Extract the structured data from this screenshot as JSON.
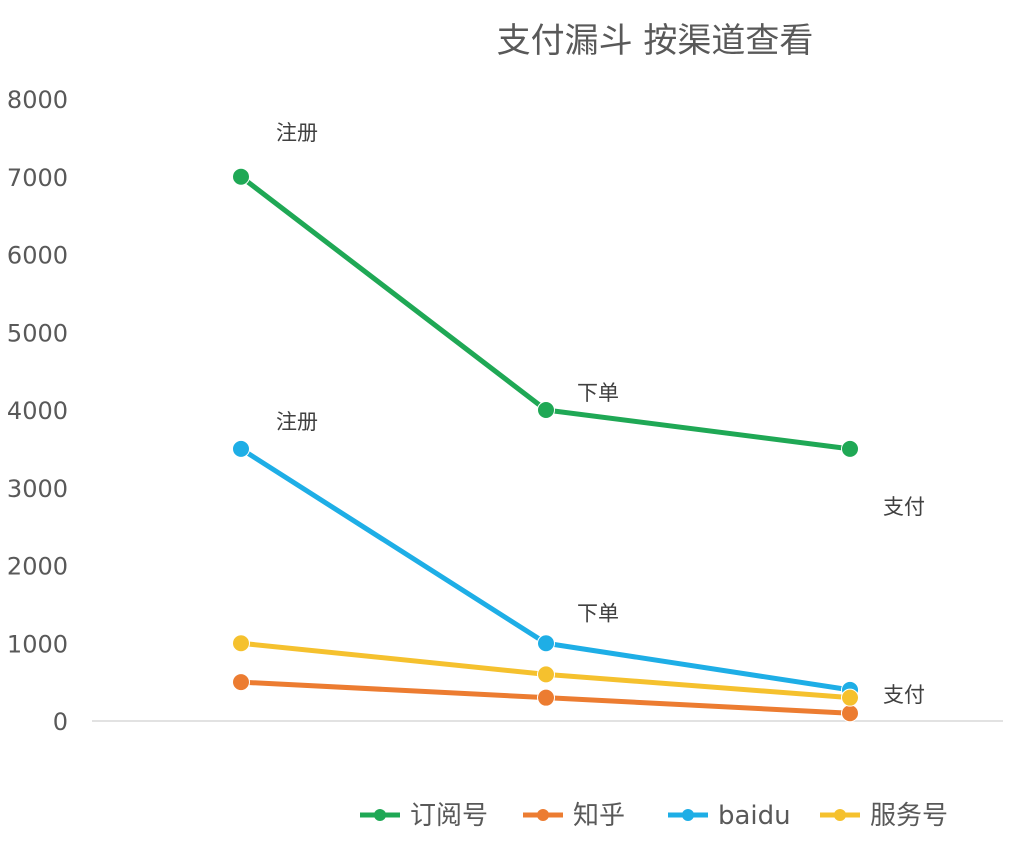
{
  "chart_data": {
    "type": "line",
    "title": "支付漏斗 按渠道查看",
    "xlabel": "",
    "ylabel": "",
    "categories": [
      "注册",
      "下单",
      "支付"
    ],
    "ylim": [
      0,
      8000
    ],
    "yticks": [
      0,
      1000,
      2000,
      3000,
      4000,
      5000,
      6000,
      7000,
      8000
    ],
    "grid": false,
    "legend_position": "bottom",
    "series": [
      {
        "name": "订阅号",
        "color": "#1fa855",
        "values": [
          7000,
          4000,
          3500
        ]
      },
      {
        "name": "知乎",
        "color": "#ec7c31",
        "values": [
          500,
          300,
          100
        ]
      },
      {
        "name": "baidu",
        "color": "#1eaee6",
        "values": [
          3500,
          1000,
          400
        ]
      },
      {
        "name": "服务号",
        "color": "#f5c12e",
        "values": [
          1000,
          600,
          300
        ]
      }
    ],
    "annotations": [
      {
        "text": "注册",
        "category_index": 0,
        "series": "订阅号"
      },
      {
        "text": "下单",
        "category_index": 1,
        "series": "订阅号"
      },
      {
        "text": "支付",
        "category_index": 2,
        "series": "订阅号"
      },
      {
        "text": "注册",
        "category_index": 0,
        "series": "baidu"
      },
      {
        "text": "下单",
        "category_index": 1,
        "series": "baidu"
      },
      {
        "text": "支付",
        "category_index": 2,
        "series": "baidu"
      }
    ]
  }
}
